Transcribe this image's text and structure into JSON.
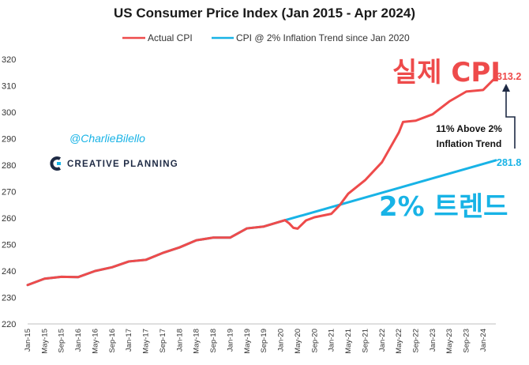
{
  "chart_data": {
    "type": "line",
    "title": "US Consumer Price Index (Jan 2015 - Apr 2024)",
    "xlabel": "",
    "ylabel": "",
    "ylim": [
      220,
      320
    ],
    "yticks": [
      220,
      230,
      240,
      250,
      260,
      270,
      280,
      290,
      300,
      310,
      320
    ],
    "xtick_labels": [
      "Jan-15",
      "May-15",
      "Sep-15",
      "Jan-16",
      "May-16",
      "Sep-16",
      "Jan-17",
      "May-17",
      "Sep-17",
      "Jan-18",
      "May-18",
      "Sep-18",
      "Jan-19",
      "May-19",
      "Sep-19",
      "Jan-20",
      "May-20",
      "Sep-20",
      "Jan-21",
      "May-21",
      "Sep-21",
      "Jan-22",
      "May-22",
      "Sep-22",
      "Jan-23",
      "May-23",
      "Sep-23",
      "Jan-24"
    ],
    "grid": false,
    "legend": "top-center",
    "series": [
      {
        "name": "Actual CPI",
        "color": "#ee4b4b",
        "points": [
          [
            "Jan-15",
            234.7
          ],
          [
            "May-15",
            237.1
          ],
          [
            "Sep-15",
            237.8
          ],
          [
            "Jan-16",
            237.7
          ],
          [
            "May-16",
            240.0
          ],
          [
            "Sep-16",
            241.4
          ],
          [
            "Jan-17",
            243.6
          ],
          [
            "May-17",
            244.2
          ],
          [
            "Sep-17",
            246.8
          ],
          [
            "Jan-18",
            248.9
          ],
          [
            "May-18",
            251.6
          ],
          [
            "Sep-18",
            252.6
          ],
          [
            "Jan-19",
            252.6
          ],
          [
            "May-19",
            256.1
          ],
          [
            "Sep-19",
            256.8
          ],
          [
            "Jan-20",
            258.7
          ],
          [
            "Feb-20",
            259.2
          ],
          [
            "Mar-20",
            258.0
          ],
          [
            "Apr-20",
            256.3
          ],
          [
            "May-20",
            256.0
          ],
          [
            "Jul-20",
            259.1
          ],
          [
            "Sep-20",
            260.3
          ],
          [
            "Jan-21",
            261.6
          ],
          [
            "Mar-21",
            264.9
          ],
          [
            "May-21",
            269.2
          ],
          [
            "Sep-21",
            274.3
          ],
          [
            "Jan-22",
            281.1
          ],
          [
            "May-22",
            292.3
          ],
          [
            "Jun-22",
            296.3
          ],
          [
            "Sep-22",
            296.8
          ],
          [
            "Jan-23",
            299.2
          ],
          [
            "May-23",
            304.1
          ],
          [
            "Sep-23",
            307.8
          ],
          [
            "Jan-24",
            308.4
          ],
          [
            "Apr-24",
            313.2
          ]
        ],
        "end_label": "313.2"
      },
      {
        "name": "CPI @ 2% Inflation Trend since Jan 2020",
        "color": "#18b3e6",
        "points": [
          [
            "Jan-15",
            234.7
          ],
          [
            "May-15",
            237.1
          ],
          [
            "Sep-15",
            237.8
          ],
          [
            "Jan-16",
            237.7
          ],
          [
            "May-16",
            240.0
          ],
          [
            "Sep-16",
            241.4
          ],
          [
            "Jan-17",
            243.6
          ],
          [
            "May-17",
            244.2
          ],
          [
            "Sep-17",
            246.8
          ],
          [
            "Jan-18",
            248.9
          ],
          [
            "May-18",
            251.6
          ],
          [
            "Sep-18",
            252.6
          ],
          [
            "Jan-19",
            252.6
          ],
          [
            "May-19",
            256.1
          ],
          [
            "Sep-19",
            256.8
          ],
          [
            "Jan-20",
            258.7
          ],
          [
            "Apr-24",
            281.8
          ]
        ],
        "end_label": "281.8"
      }
    ],
    "annotations": {
      "actual_label": "실제 CPI",
      "trend_label": "2% 트렌드",
      "gap_note_line1": "11% Above 2%",
      "gap_note_line2": "Inflation Trend",
      "handle": "@CharlieBilello",
      "brand": "CREATIVE PLANNING"
    }
  }
}
